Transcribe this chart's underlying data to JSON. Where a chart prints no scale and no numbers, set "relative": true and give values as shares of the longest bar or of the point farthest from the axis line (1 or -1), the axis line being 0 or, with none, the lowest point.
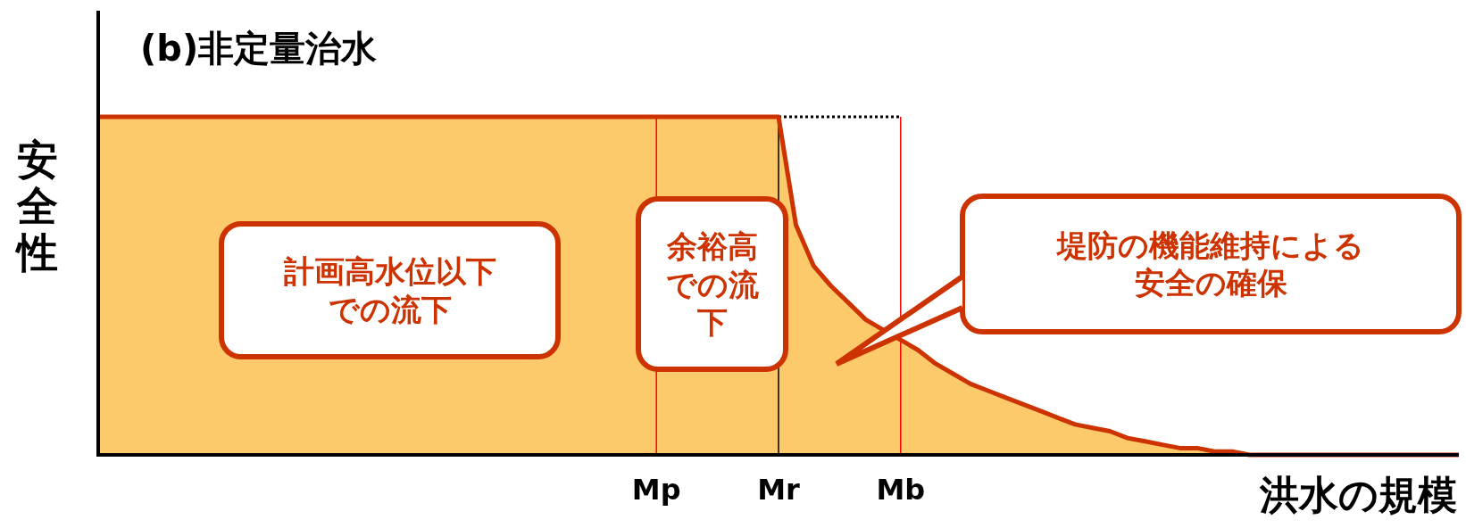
{
  "chart_data": {
    "type": "area",
    "title": "(b)非定量治水",
    "xlabel": "洪水の規模",
    "ylabel": "安全性",
    "relative": true,
    "categories": [
      null,
      null,
      null,
      null,
      null,
      null,
      null,
      null,
      null,
      null,
      null,
      null,
      null,
      null,
      null,
      null,
      null,
      null,
      null,
      null,
      null,
      null,
      null,
      null,
      null,
      null,
      null,
      null,
      null,
      null,
      null,
      null,
      "Mp",
      null,
      null,
      null,
      null,
      null,
      null,
      "Mr",
      null,
      null,
      null,
      null,
      null,
      null,
      "Mb",
      null,
      null,
      null,
      null,
      null,
      null,
      null,
      null,
      null,
      null,
      null,
      null,
      null,
      null,
      null,
      null,
      null,
      null,
      null,
      null,
      null,
      null,
      null,
      null,
      null,
      null,
      null,
      null,
      null,
      null,
      null,
      null
    ],
    "series": [
      {
        "color": "#fdca6b",
        "values": [
          1,
          1,
          1,
          1,
          1,
          1,
          1,
          1,
          1,
          1,
          1,
          1,
          1,
          1,
          1,
          1,
          1,
          1,
          1,
          1,
          1,
          1,
          1,
          1,
          1,
          1,
          1,
          1,
          1,
          1,
          1,
          1,
          1,
          1,
          1,
          1,
          1,
          1,
          1,
          1,
          0.68,
          0.56,
          0.5,
          0.45,
          0.4,
          0.37,
          0.34,
          0.31,
          0.27,
          0.24,
          0.21,
          0.19,
          0.17,
          0.15,
          0.13,
          0.11,
          0.09,
          0.08,
          0.07,
          0.05,
          0.04,
          0.03,
          0.02,
          0.02,
          0.01,
          0.01,
          0,
          0,
          0,
          0,
          0,
          0,
          0,
          0,
          0,
          0,
          0,
          0,
          0
        ]
      },
      {
        "type": "line",
        "color": "#000000",
        "line_style": "dotted",
        "values": [
          null,
          null,
          null,
          null,
          null,
          null,
          null,
          null,
          null,
          null,
          null,
          null,
          null,
          null,
          null,
          null,
          null,
          null,
          null,
          null,
          null,
          null,
          null,
          null,
          null,
          null,
          null,
          null,
          null,
          null,
          null,
          null,
          null,
          null,
          null,
          null,
          null,
          null,
          null,
          1,
          1,
          1,
          1,
          1,
          1,
          1,
          1,
          null,
          null,
          null,
          null,
          null,
          null,
          null,
          null,
          null,
          null,
          null,
          null,
          null,
          null,
          null,
          null,
          null,
          null,
          null,
          null,
          null,
          null,
          null,
          null,
          null,
          null,
          null,
          null,
          null,
          null,
          null,
          null
        ]
      }
    ],
    "ref_lines": [
      {
        "axis": "x",
        "value": "Mp",
        "color": "#ff0000"
      },
      {
        "axis": "x",
        "value": "Mr",
        "color": "#000000"
      },
      {
        "axis": "x",
        "value": "Mb",
        "color": "#ff0000"
      }
    ],
    "annotations": [
      "計画高水位以下での流下",
      "余裕高での流下",
      "堤防の機能維持による安全の確保"
    ]
  }
}
